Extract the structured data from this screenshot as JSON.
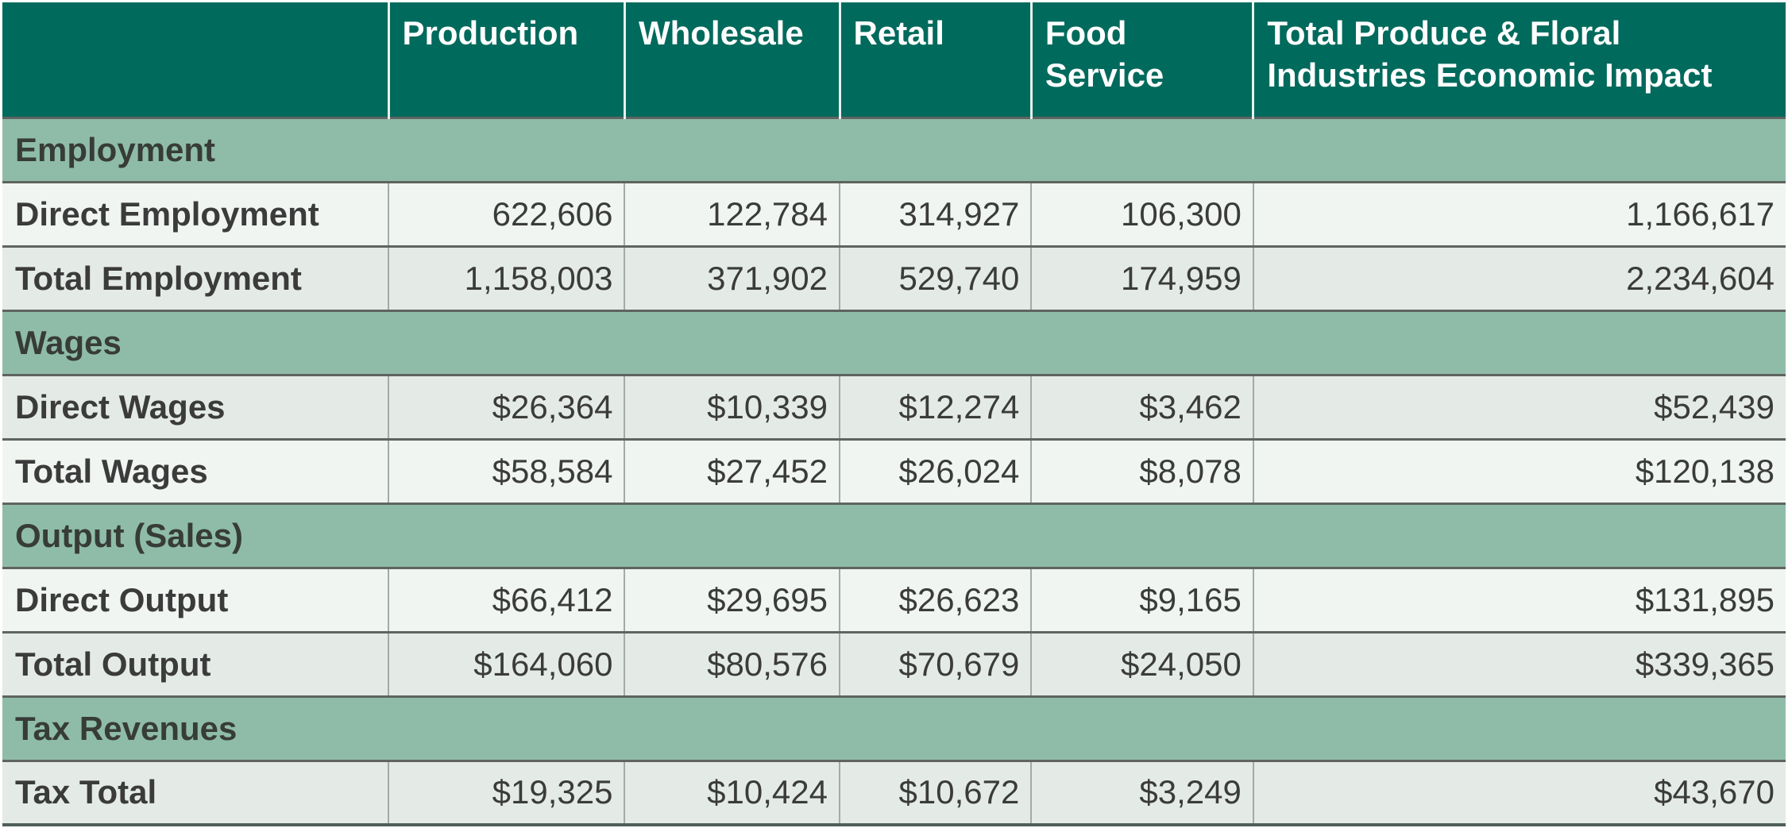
{
  "colors": {
    "header_bg": "#006a5c",
    "header_text": "#ffffff",
    "section_bg": "#8fbca8",
    "row_light": "#f0f5f1",
    "row_dark": "#e4ebe6",
    "body_text": "#3b3b3b",
    "row_border": "#5f6461",
    "column_border": "#a2aba6",
    "header_separator": "#e9f0ed"
  },
  "chart_data": {
    "type": "table",
    "title": "Total Produce & Floral Industries Economic Impact",
    "columns": [
      "",
      "Production",
      "Wholesale",
      "Retail",
      "Food Service",
      "Total Produce & Floral Industries Economic Impact"
    ],
    "sections": [
      {
        "label": "Employment",
        "rows": [
          {
            "label": "Direct Employment",
            "values": [
              "622,606",
              "122,784",
              "314,927",
              "106,300",
              "1,166,617"
            ]
          },
          {
            "label": "Total Employment",
            "values": [
              "1,158,003",
              "371,902",
              "529,740",
              "174,959",
              "2,234,604"
            ]
          }
        ]
      },
      {
        "label": "Wages",
        "rows": [
          {
            "label": "Direct Wages",
            "values": [
              "$26,364",
              "$10,339",
              "$12,274",
              "$3,462",
              "$52,439"
            ]
          },
          {
            "label": "Total Wages",
            "values": [
              "$58,584",
              "$27,452",
              "$26,024",
              "$8,078",
              "$120,138"
            ]
          }
        ]
      },
      {
        "label": "Output (Sales)",
        "rows": [
          {
            "label": "Direct Output",
            "values": [
              "$66,412",
              "$29,695",
              "$26,623",
              "$9,165",
              "$131,895"
            ]
          },
          {
            "label": "Total Output",
            "values": [
              "$164,060",
              "$80,576",
              "$70,679",
              "$24,050",
              "$339,365"
            ]
          }
        ]
      },
      {
        "label": "Tax Revenues",
        "rows": [
          {
            "label": "Tax Total",
            "values": [
              "$19,325",
              "$10,424",
              "$10,672",
              "$3,249",
              "$43,670"
            ]
          }
        ]
      }
    ]
  }
}
